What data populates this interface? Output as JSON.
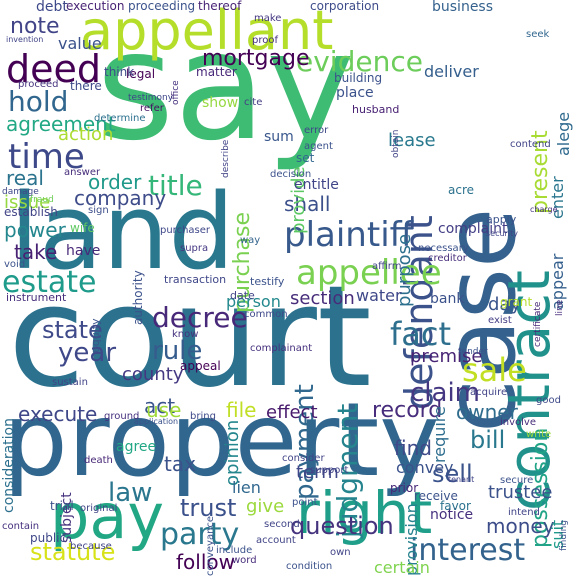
{
  "words": [
    {
      "text": "court",
      "color": "#2c728e"
    },
    {
      "text": "say",
      "color": "#3fbc73"
    },
    {
      "text": "property",
      "color": "#31668e"
    },
    {
      "text": "land",
      "color": "#2a788e"
    },
    {
      "text": "case",
      "color": "#34618d"
    },
    {
      "text": "appellant",
      "color": "#b5de2b"
    },
    {
      "text": "right",
      "color": "#1f9e89"
    },
    {
      "text": "pay",
      "color": "#22a785"
    },
    {
      "text": "contract",
      "color": "#21918c"
    },
    {
      "text": "defendant",
      "color": "#3b528b"
    },
    {
      "text": "appellee",
      "color": "#7ad151"
    },
    {
      "text": "plaintiff",
      "color": "#38598c"
    },
    {
      "text": "deed",
      "color": "#440154"
    },
    {
      "text": "time",
      "color": "#3e4989"
    },
    {
      "text": "estate",
      "color": "#1e9b8a"
    },
    {
      "text": "evidence",
      "color": "#6ccd5a"
    },
    {
      "text": "decree",
      "color": "#482878"
    },
    {
      "text": "sale",
      "color": "#c2df23"
    },
    {
      "text": "fact",
      "color": "#2e6f8e"
    },
    {
      "text": "party",
      "color": "#2a788e"
    },
    {
      "text": "interest",
      "color": "#33638d"
    },
    {
      "text": "year",
      "color": "#3f4889"
    },
    {
      "text": "rule",
      "color": "#365c8d"
    },
    {
      "text": "claim",
      "color": "#453781"
    },
    {
      "text": "judgment",
      "color": "#25848e"
    },
    {
      "text": "hold",
      "color": "#31678e"
    },
    {
      "text": "title",
      "color": "#35b779"
    },
    {
      "text": "law",
      "color": "#2a768e"
    },
    {
      "text": "purchase",
      "color": "#7ad151"
    },
    {
      "text": "payment",
      "color": "#31688e"
    },
    {
      "text": "state",
      "color": "#3e4a89"
    },
    {
      "text": "mortgage",
      "color": "#440154"
    },
    {
      "text": "contract",
      "color": "#21918c"
    },
    {
      "text": "present",
      "color": "#a8db34"
    },
    {
      "text": "statute",
      "color": "#d8e219"
    },
    {
      "text": "question",
      "color": "#46337e"
    },
    {
      "text": "trust",
      "color": "#3b518b"
    },
    {
      "text": "possession",
      "color": "#20a386"
    },
    {
      "text": "record",
      "color": "#472d7b"
    },
    {
      "text": "sell",
      "color": "#3a538b"
    },
    {
      "text": "bill",
      "color": "#2a788e"
    },
    {
      "text": "money",
      "color": "#3d4d8a"
    },
    {
      "text": "owner",
      "color": "#2f6c8e"
    },
    {
      "text": "county",
      "color": "#453882"
    },
    {
      "text": "execute",
      "color": "#3f4788"
    },
    {
      "text": "note",
      "color": "#414487"
    },
    {
      "text": "value",
      "color": "#3b528b"
    },
    {
      "text": "agreement",
      "color": "#22a884"
    },
    {
      "text": "action",
      "color": "#addc30"
    },
    {
      "text": "real",
      "color": "#2c738e"
    },
    {
      "text": "order",
      "color": "#1f998a"
    },
    {
      "text": "company",
      "color": "#3e4c8a"
    },
    {
      "text": "issue",
      "color": "#95d840"
    },
    {
      "text": "power",
      "color": "#24878e"
    },
    {
      "text": "take",
      "color": "#482173"
    },
    {
      "text": "section",
      "color": "#472c7a"
    },
    {
      "text": "shall",
      "color": "#3c508b"
    },
    {
      "text": "provide",
      "color": "#5cc863"
    },
    {
      "text": "purpose",
      "color": "#2d708e"
    },
    {
      "text": "lease",
      "color": "#29798e"
    },
    {
      "text": "deliver",
      "color": "#355f8d"
    },
    {
      "text": "consideration",
      "color": "#2d708e"
    },
    {
      "text": "opinion",
      "color": "#24878e"
    },
    {
      "text": "act",
      "color": "#3a548c"
    },
    {
      "text": "use",
      "color": "#a0da39"
    },
    {
      "text": "file",
      "color": "#c0df25"
    },
    {
      "text": "effect",
      "color": "#481a6c"
    },
    {
      "text": "find",
      "color": "#3e4a89"
    },
    {
      "text": "tax",
      "color": "#3b528b"
    },
    {
      "text": "lien",
      "color": "#31688e"
    },
    {
      "text": "follow",
      "color": "#440154"
    },
    {
      "text": "give",
      "color": "#9bd93c"
    },
    {
      "text": "term",
      "color": "#3f4788"
    },
    {
      "text": "provision",
      "color": "#26828e"
    },
    {
      "text": "trustee",
      "color": "#3b528b"
    },
    {
      "text": "premise",
      "color": "#482475"
    },
    {
      "text": "require",
      "color": "#2e6e8e"
    },
    {
      "text": "person",
      "color": "#23898e"
    },
    {
      "text": "water",
      "color": "#3f4889"
    },
    {
      "text": "day",
      "color": "#3a548c"
    },
    {
      "text": "appear",
      "color": "#35608d"
    },
    {
      "text": "enter",
      "color": "#2a768e"
    },
    {
      "text": "alege",
      "color": "#306a8e"
    },
    {
      "text": "certain",
      "color": "#7fd34e"
    },
    {
      "text": "notice",
      "color": "#46307e"
    },
    {
      "text": "suit",
      "color": "#1f9a8a"
    },
    {
      "text": "subject",
      "color": "#46327e"
    },
    {
      "text": "agree",
      "color": "#22a785"
    },
    {
      "text": "show",
      "color": "#95d840"
    },
    {
      "text": "place",
      "color": "#3b528b"
    },
    {
      "text": "sum",
      "color": "#39568c"
    },
    {
      "text": "complaint",
      "color": "#433e85"
    },
    {
      "text": "entitle",
      "color": "#404588"
    },
    {
      "text": "set",
      "color": "#31678e"
    },
    {
      "text": "acre",
      "color": "#2c728e"
    },
    {
      "text": "business",
      "color": "#34618d"
    },
    {
      "text": "proceeding",
      "color": "#3b528b"
    },
    {
      "text": "thereof",
      "color": "#482576"
    },
    {
      "text": "corporation",
      "color": "#3e4c8a"
    },
    {
      "text": "execution",
      "color": "#482475"
    },
    {
      "text": "debt",
      "color": "#3e4989"
    },
    {
      "text": "make",
      "color": "#453781"
    },
    {
      "text": "proof",
      "color": "#46307e"
    },
    {
      "text": "seek",
      "color": "#31678e"
    },
    {
      "text": "legal",
      "color": "#440154"
    },
    {
      "text": "think",
      "color": "#3e4989"
    },
    {
      "text": "matter",
      "color": "#482878"
    },
    {
      "text": "building",
      "color": "#3b528b"
    },
    {
      "text": "testimony",
      "color": "#3f4788"
    },
    {
      "text": "refer",
      "color": "#471063"
    },
    {
      "text": "there",
      "color": "#3e4a89"
    },
    {
      "text": "proceed",
      "color": "#46337e"
    },
    {
      "text": "determine",
      "color": "#2c718e"
    },
    {
      "text": "cite",
      "color": "#433d84"
    },
    {
      "text": "agent",
      "color": "#3b528b"
    },
    {
      "text": "error",
      "color": "#3f4889"
    },
    {
      "text": "husband",
      "color": "#482173"
    },
    {
      "text": "contend",
      "color": "#414487"
    },
    {
      "text": "decision",
      "color": "#3b528b"
    },
    {
      "text": "answer",
      "color": "#472d7b"
    },
    {
      "text": "damage",
      "color": "#3f4788"
    },
    {
      "text": "fraud",
      "color": "#6ece58"
    },
    {
      "text": "establish",
      "color": "#414487"
    },
    {
      "text": "void",
      "color": "#3b528b"
    },
    {
      "text": "sign",
      "color": "#3d4e8a"
    },
    {
      "text": "wife",
      "color": "#5ec962"
    },
    {
      "text": "have",
      "color": "#482878"
    },
    {
      "text": "authority",
      "color": "#3b528b"
    },
    {
      "text": "purchaser",
      "color": "#3f4889"
    },
    {
      "text": "way",
      "color": "#33638d"
    },
    {
      "text": "supra",
      "color": "#453882"
    },
    {
      "text": "transaction",
      "color": "#3f4788"
    },
    {
      "text": "instrument",
      "color": "#472d7b"
    },
    {
      "text": "equity",
      "color": "#3b528b"
    },
    {
      "text": "date",
      "color": "#414487"
    },
    {
      "text": "testify",
      "color": "#3b528b"
    },
    {
      "text": "common",
      "color": "#3e4989"
    },
    {
      "text": "know",
      "color": "#46327e"
    },
    {
      "text": "appeal",
      "color": "#440154"
    },
    {
      "text": "complainant",
      "color": "#46307e"
    },
    {
      "text": "necessary",
      "color": "#3b528b"
    },
    {
      "text": "creditor",
      "color": "#472d7b"
    },
    {
      "text": "affirm",
      "color": "#414487"
    },
    {
      "text": "bank",
      "color": "#3b528b"
    },
    {
      "text": "exist",
      "color": "#433e85"
    },
    {
      "text": "grant",
      "color": "#b5de2b"
    },
    {
      "text": "certificate",
      "color": "#482878"
    },
    {
      "text": "apply",
      "color": "#3b528b"
    },
    {
      "text": "security",
      "color": "#414487"
    },
    {
      "text": "charge",
      "color": "#46307e"
    },
    {
      "text": "line",
      "color": "#472d7b"
    },
    {
      "text": "tender",
      "color": "#3b528b"
    },
    {
      "text": "acquire",
      "color": "#414487"
    },
    {
      "text": "good",
      "color": "#3e4a89"
    },
    {
      "text": "involve",
      "color": "#472d7b"
    },
    {
      "text": "write",
      "color": "#9bd93c"
    },
    {
      "text": "convey",
      "color": "#3b528b"
    },
    {
      "text": "consider",
      "color": "#414487"
    },
    {
      "text": "ground",
      "color": "#46307e"
    },
    {
      "text": "bring",
      "color": "#3e4a89"
    },
    {
      "text": "sustain",
      "color": "#414487"
    },
    {
      "text": "death",
      "color": "#482878"
    },
    {
      "text": "conveyance",
      "color": "#3b528b"
    },
    {
      "text": "support",
      "color": "#414487"
    },
    {
      "text": "prior",
      "color": "#482878"
    },
    {
      "text": "tenant",
      "color": "#414487"
    },
    {
      "text": "secure",
      "color": "#3b528b"
    },
    {
      "text": "receive",
      "color": "#3b528b"
    },
    {
      "text": "favor",
      "color": "#2c728e"
    },
    {
      "text": "original",
      "color": "#414487"
    },
    {
      "text": "trial",
      "color": "#3b528b"
    },
    {
      "text": "second",
      "color": "#414487"
    },
    {
      "text": "point",
      "color": "#3b528b"
    },
    {
      "text": "public",
      "color": "#3f4788"
    },
    {
      "text": "contain",
      "color": "#46307e"
    },
    {
      "text": "account",
      "color": "#414487"
    },
    {
      "text": "include",
      "color": "#3b528b"
    },
    {
      "text": "word",
      "color": "#472d7b"
    },
    {
      "text": "because",
      "color": "#414487"
    },
    {
      "text": "condition",
      "color": "#3b528b"
    },
    {
      "text": "intend",
      "color": "#414487"
    },
    {
      "text": "own",
      "color": "#414487"
    },
    {
      "text": "finding",
      "color": "#3b528b"
    },
    {
      "text": "inherit",
      "color": "#414487"
    },
    {
      "text": "reason",
      "color": "#414487"
    },
    {
      "text": "application",
      "color": "#3b528b"
    },
    {
      "text": "covenant",
      "color": "#414487"
    },
    {
      "text": "office",
      "color": "#46307e"
    },
    {
      "text": "obtain",
      "color": "#414487"
    },
    {
      "text": "describe",
      "color": "#414487"
    },
    {
      "text": "invention",
      "color": "#414487"
    }
  ]
}
